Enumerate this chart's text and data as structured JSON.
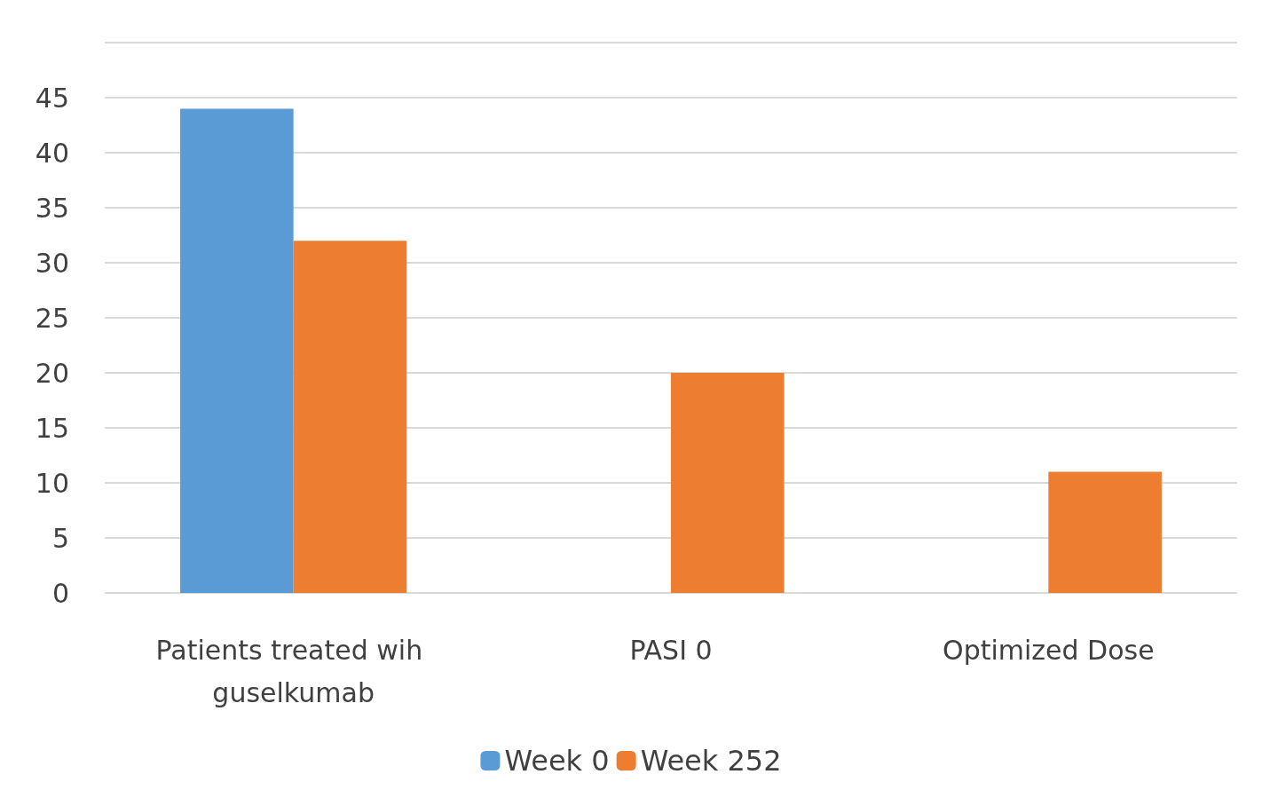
{
  "chart_data": {
    "type": "bar",
    "categories": [
      "Patients treated wih guselkumab",
      "PASI 0",
      "Optimized Dose"
    ],
    "series": [
      {
        "name": "Week 0",
        "color": "#5b9bd5",
        "values": [
          44,
          0,
          0
        ]
      },
      {
        "name": "Week 252",
        "color": "#ed7d31",
        "values": [
          32,
          20,
          11
        ]
      }
    ],
    "ylim": [
      0,
      50
    ],
    "yticks": [
      0,
      5,
      10,
      15,
      20,
      25,
      30,
      35,
      40,
      45,
      {
        "value": 50,
        "label": null
      }
    ],
    "grid": "y",
    "legend": "bottom"
  }
}
